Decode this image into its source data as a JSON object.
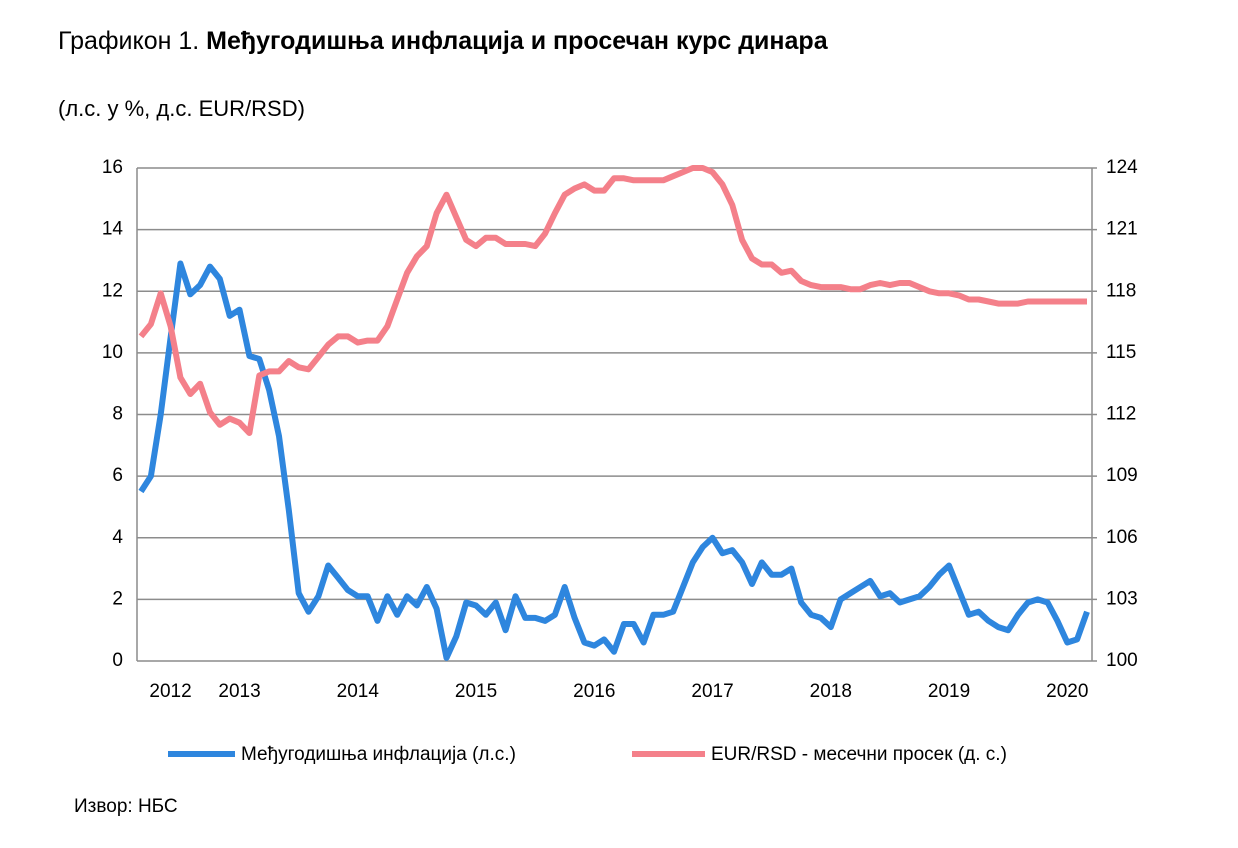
{
  "chart_data": {
    "type": "line",
    "title_label": "Графикон 1.",
    "title": "Међугодишња инфлација и просечан курс динара",
    "subtitle": "(л.с. у %, д.с. EUR/RSD)",
    "source": "Извор: НБС",
    "categories": [
      null,
      null,
      null,
      "2012",
      null,
      null,
      null,
      null,
      null,
      null,
      "2013",
      null,
      null,
      null,
      null,
      null,
      null,
      null,
      null,
      null,
      null,
      null,
      "2014",
      null,
      null,
      null,
      null,
      null,
      null,
      null,
      null,
      null,
      null,
      null,
      "2015",
      null,
      null,
      null,
      null,
      null,
      null,
      null,
      null,
      null,
      null,
      null,
      "2016",
      null,
      null,
      null,
      null,
      null,
      null,
      null,
      null,
      null,
      null,
      null,
      "2017",
      null,
      null,
      null,
      null,
      null,
      null,
      null,
      null,
      null,
      null,
      null,
      "2018",
      null,
      null,
      null,
      null,
      null,
      null,
      null,
      null,
      null,
      null,
      null,
      "2019",
      null,
      null,
      null,
      null,
      null,
      null,
      null,
      null,
      null,
      null,
      null,
      "2020",
      null,
      null
    ],
    "series": [
      {
        "name": "Међугодишња инфлација (л.с.)",
        "color": "#2e86de",
        "axis": "y",
        "values": [
          5.5,
          6.0,
          8.0,
          10.5,
          12.9,
          11.9,
          12.2,
          12.8,
          12.4,
          11.2,
          11.4,
          9.9,
          9.8,
          8.8,
          7.3,
          4.9,
          2.2,
          1.6,
          2.1,
          3.1,
          2.7,
          2.3,
          2.1,
          2.1,
          1.3,
          2.1,
          1.5,
          2.1,
          1.8,
          2.4,
          1.7,
          0.1,
          0.8,
          1.9,
          1.8,
          1.5,
          1.9,
          1.0,
          2.1,
          1.4,
          1.4,
          1.3,
          1.5,
          2.4,
          1.4,
          0.6,
          0.5,
          0.7,
          0.3,
          1.2,
          1.2,
          0.6,
          1.5,
          1.5,
          1.6,
          2.4,
          3.2,
          3.7,
          4.0,
          3.5,
          3.6,
          3.2,
          2.5,
          3.2,
          2.8,
          2.8,
          3.0,
          1.9,
          1.5,
          1.4,
          1.1,
          2.0,
          2.2,
          2.4,
          2.6,
          2.1,
          2.2,
          1.9,
          2.0,
          2.1,
          2.4,
          2.8,
          3.1,
          2.3,
          1.5,
          1.6,
          1.3,
          1.1,
          1.0,
          1.5,
          1.9,
          2.0,
          1.9,
          1.3,
          0.6,
          0.7,
          1.6
        ]
      },
      {
        "name": "EUR/RSD - месечни просек (д. с.)",
        "color": "#f4808a",
        "axis": "y2",
        "values": [
          115.8,
          116.4,
          117.9,
          116.3,
          113.8,
          113.0,
          113.5,
          112.1,
          111.5,
          111.8,
          111.6,
          111.1,
          113.9,
          114.1,
          114.1,
          114.6,
          114.3,
          114.2,
          114.8,
          115.4,
          115.8,
          115.8,
          115.5,
          115.6,
          115.6,
          116.3,
          117.6,
          118.9,
          119.7,
          120.2,
          121.8,
          122.7,
          121.6,
          120.5,
          120.2,
          120.6,
          120.6,
          120.3,
          120.3,
          120.3,
          120.2,
          120.8,
          121.8,
          122.7,
          123.0,
          123.2,
          122.9,
          122.9,
          123.5,
          123.5,
          123.4,
          123.4,
          123.4,
          123.4,
          123.6,
          123.8,
          124.0,
          124.0,
          123.8,
          123.2,
          122.2,
          120.5,
          119.6,
          119.3,
          119.3,
          118.9,
          119.0,
          118.5,
          118.3,
          118.2,
          118.2,
          118.2,
          118.1,
          118.1,
          118.3,
          118.4,
          118.3,
          118.4,
          118.4,
          118.2,
          118.0,
          117.9,
          117.9,
          117.8,
          117.6,
          117.6,
          117.5,
          117.4,
          117.4,
          117.4,
          117.5,
          117.5,
          117.5,
          117.5,
          117.5,
          117.5,
          117.5
        ]
      }
    ],
    "ylim": [
      0,
      16
    ],
    "yticks": [
      0,
      2,
      4,
      6,
      8,
      10,
      12,
      14,
      16
    ],
    "y2lim": [
      100,
      124
    ],
    "y2ticks": [
      100,
      103,
      106,
      109,
      112,
      115,
      118,
      121,
      124
    ],
    "grid": true
  }
}
